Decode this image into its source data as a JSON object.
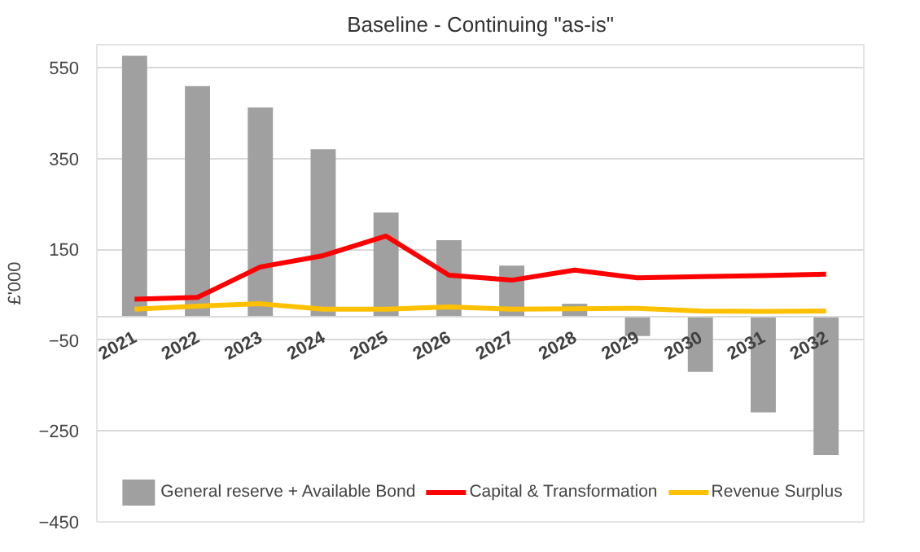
{
  "chart_data": {
    "type": "bar",
    "title": "Baseline - Continuing \"as-is\"",
    "ylabel": "£'000",
    "categories": [
      "2021",
      "2022",
      "2023",
      "2024",
      "2025",
      "2026",
      "2027",
      "2028",
      "2029",
      "2030",
      "2031",
      "2032"
    ],
    "series": [
      {
        "name": "General reserve + Available Bond",
        "color": "#a0a0a0",
        "values": [
          576,
          509,
          462,
          370,
          231,
          170,
          114,
          30,
          -41,
          -120,
          -209,
          -303
        ]
      },
      {
        "name": "Capital & Transformation",
        "color": "#ff0000",
        "type": "line",
        "values": [
          40,
          44,
          111,
          136,
          179,
          93,
          82,
          104,
          87,
          90,
          92,
          95
        ]
      },
      {
        "name": "Revenue Surplus",
        "color": "#ffc000",
        "type": "line",
        "values": [
          18,
          25,
          30,
          18,
          18,
          23,
          18,
          19,
          20,
          14,
          13,
          14
        ]
      }
    ],
    "ylim": [
      -450,
      600
    ],
    "yticks": [
      -450,
      -250,
      -50,
      150,
      350,
      550
    ],
    "grid": "y",
    "legend": "bottom"
  }
}
